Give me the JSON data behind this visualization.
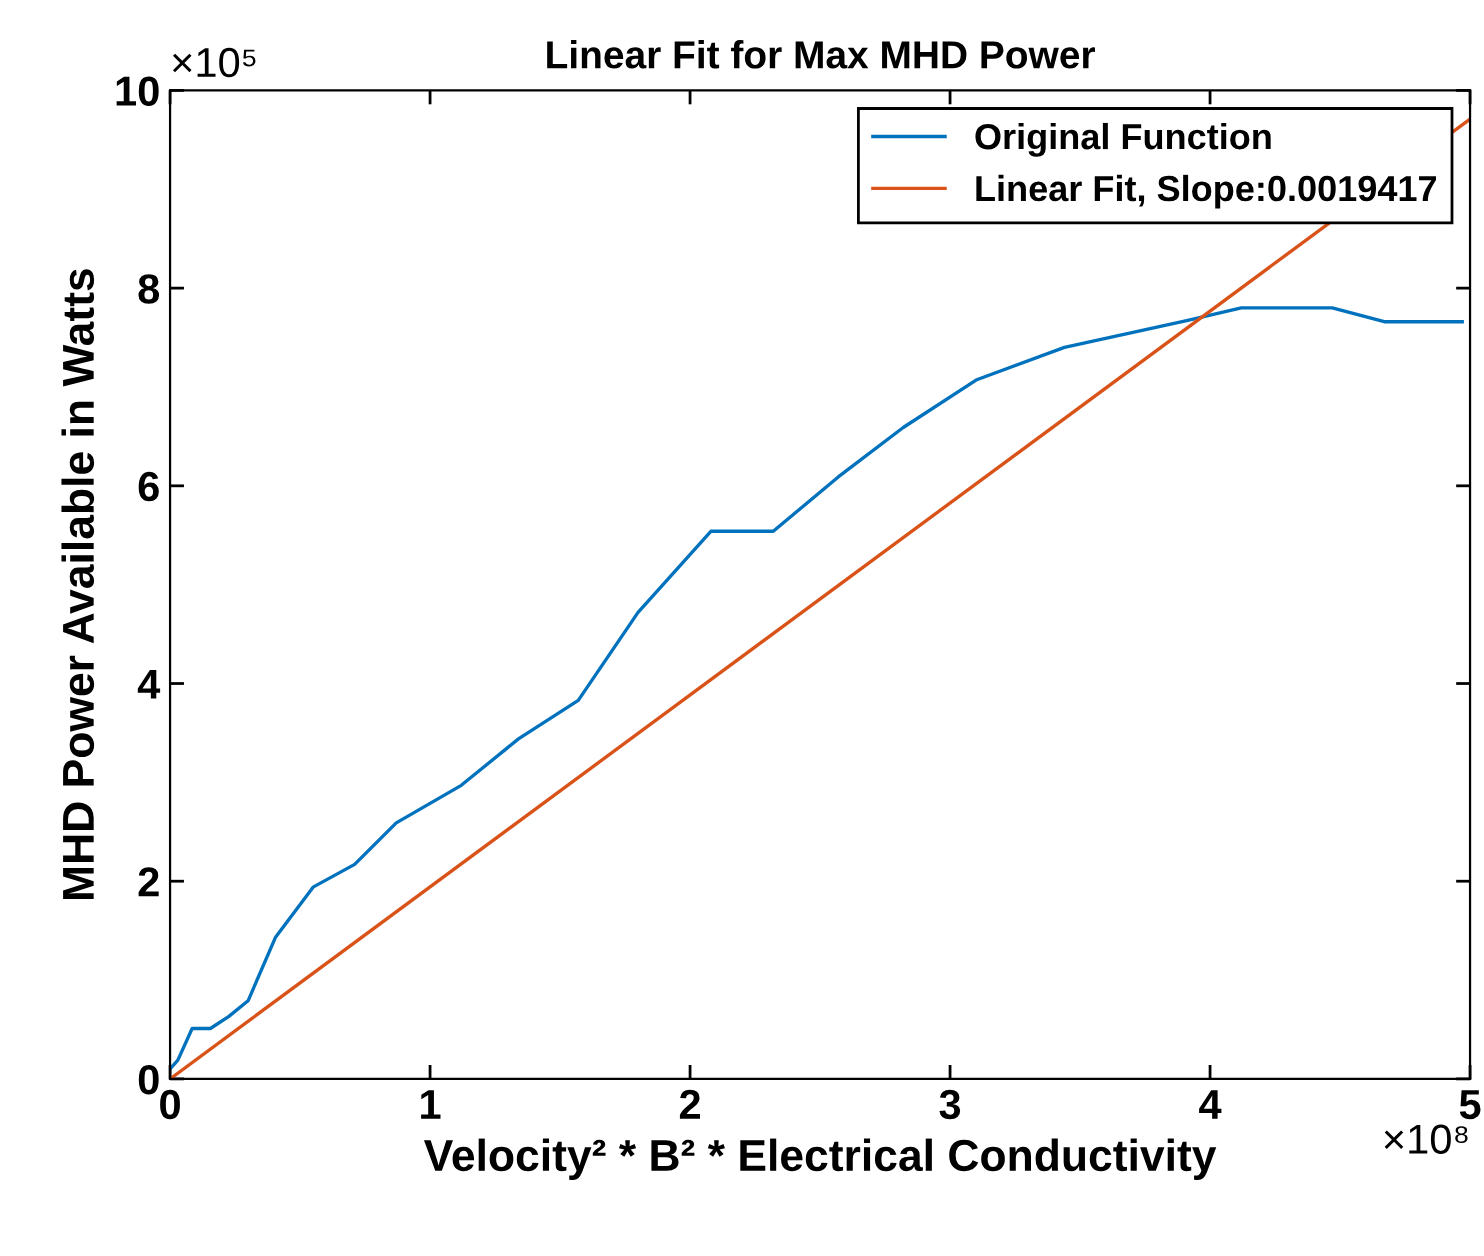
{
  "chart_data": {
    "type": "line",
    "title": "Linear Fit for Max MHD Power",
    "xlabel": "Velocity² * B² * Electrical Conductivity",
    "ylabel": "MHD Power Available in Watts",
    "annotations": [
      "×10⁵",
      "×10⁸"
    ],
    "series": [
      {
        "name": "Original Function",
        "color": "#0072bd",
        "x": [
          0,
          0.03,
          0.085,
          0.155,
          0.225,
          0.3,
          0.405,
          0.55,
          0.71,
          0.87,
          1.12,
          1.34,
          1.57,
          1.8,
          2.08,
          2.32,
          2.57,
          2.82,
          3.1,
          3.44,
          3.91,
          4.12,
          4.47,
          4.67,
          4.97
        ],
        "values": [
          0.1,
          0.19,
          0.51,
          0.51,
          0.63,
          0.79,
          1.43,
          1.94,
          2.17,
          2.59,
          2.97,
          3.44,
          3.83,
          4.72,
          5.54,
          5.54,
          6.09,
          6.59,
          7.07,
          7.4,
          7.67,
          7.8,
          7.8,
          7.66,
          7.66
        ]
      },
      {
        "name": "Linear Fit, Slope:0.0019417",
        "color": "#d95319",
        "x": [
          0,
          5
        ],
        "values": [
          0,
          9.71
        ]
      }
    ],
    "xlim": [
      0,
      5
    ],
    "ylim": [
      0,
      10
    ],
    "xticks": [
      0,
      1,
      2,
      3,
      4,
      5
    ],
    "yticks": [
      0,
      2,
      4,
      6,
      8,
      10
    ],
    "legend": "top right",
    "grid": false,
    "marker": "none",
    "line_style": "solid"
  }
}
